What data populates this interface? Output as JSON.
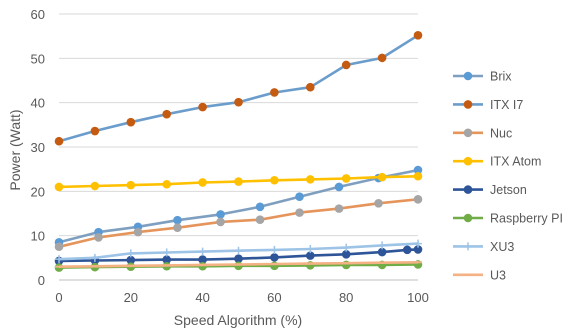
{
  "chart_data": {
    "type": "line",
    "title": "",
    "xlabel": "Speed Algorithm (%)",
    "ylabel": "Power (Watt)",
    "xlim": [
      0,
      100
    ],
    "ylim": [
      0,
      60
    ],
    "xticks": [
      0,
      20,
      40,
      60,
      80,
      100
    ],
    "yticks": [
      0,
      10,
      20,
      30,
      40,
      50,
      60
    ],
    "grid": "horizontal",
    "legend_position": "right",
    "series": [
      {
        "name": "Brix",
        "color": "#7f9fc0",
        "marker": "circle",
        "marker_color": "#5b9bd5",
        "x": [
          0,
          11,
          22,
          33,
          45,
          56,
          67,
          78,
          89,
          100
        ],
        "y": [
          8.5,
          10.8,
          12.0,
          13.5,
          14.8,
          16.5,
          18.8,
          21.0,
          23.0,
          24.8
        ]
      },
      {
        "name": "ITX I7",
        "color": "#6b9dcc",
        "marker": "circle",
        "marker_color": "#c55a11",
        "x": [
          0,
          10,
          20,
          30,
          40,
          50,
          60,
          70,
          80,
          90,
          100
        ],
        "y": [
          31.3,
          33.6,
          35.6,
          37.4,
          39.0,
          40.1,
          42.3,
          43.5,
          48.5,
          50.1,
          55.2
        ]
      },
      {
        "name": "Nuc",
        "color": "#e5955b",
        "marker": "circle",
        "marker_color": "#a5a5a5",
        "x": [
          0,
          11,
          22,
          33,
          45,
          56,
          67,
          78,
          89,
          100
        ],
        "y": [
          7.5,
          9.6,
          10.8,
          11.8,
          13.1,
          13.6,
          15.2,
          16.1,
          17.3,
          18.2
        ]
      },
      {
        "name": "ITX Atom",
        "color": "#ffc000",
        "marker": "circle",
        "marker_color": "#ffc000",
        "x": [
          0,
          10,
          20,
          30,
          40,
          50,
          60,
          70,
          80,
          90,
          100
        ],
        "y": [
          21.0,
          21.2,
          21.4,
          21.6,
          22.0,
          22.2,
          22.5,
          22.7,
          22.9,
          23.2,
          23.4
        ]
      },
      {
        "name": "Jetson",
        "color": "#2e5597",
        "marker": "circle",
        "marker_color": "#2e5597",
        "x": [
          0,
          10,
          20,
          30,
          40,
          50,
          60,
          70,
          80,
          90,
          97,
          100
        ],
        "y": [
          4.3,
          4.4,
          4.5,
          4.6,
          4.6,
          4.8,
          5.1,
          5.5,
          5.8,
          6.3,
          6.8,
          6.9
        ]
      },
      {
        "name": "Raspberry PI",
        "color": "#70ad47",
        "marker": "circle",
        "marker_color": "#70ad47",
        "x": [
          0,
          10,
          20,
          30,
          40,
          50,
          60,
          70,
          80,
          90,
          100
        ],
        "y": [
          2.8,
          2.9,
          3.0,
          3.1,
          3.1,
          3.2,
          3.2,
          3.3,
          3.4,
          3.4,
          3.5
        ]
      },
      {
        "name": "XU3",
        "color": "#9dc3e6",
        "marker": "plus",
        "marker_color": "#9dc3e6",
        "x": [
          0,
          10,
          20,
          30,
          40,
          50,
          60,
          70,
          80,
          90,
          100
        ],
        "y": [
          4.7,
          5.0,
          6.0,
          6.2,
          6.4,
          6.6,
          6.8,
          7.0,
          7.3,
          7.8,
          8.2
        ]
      },
      {
        "name": "U3",
        "color": "#f4b183",
        "marker": "dash",
        "marker_color": "#f4b183",
        "x": [
          0,
          10,
          20,
          30,
          40,
          50,
          60,
          70,
          80,
          90,
          100
        ],
        "y": [
          3.0,
          3.1,
          3.2,
          3.3,
          3.4,
          3.5,
          3.6,
          3.7,
          3.8,
          3.9,
          4.0
        ]
      }
    ]
  }
}
